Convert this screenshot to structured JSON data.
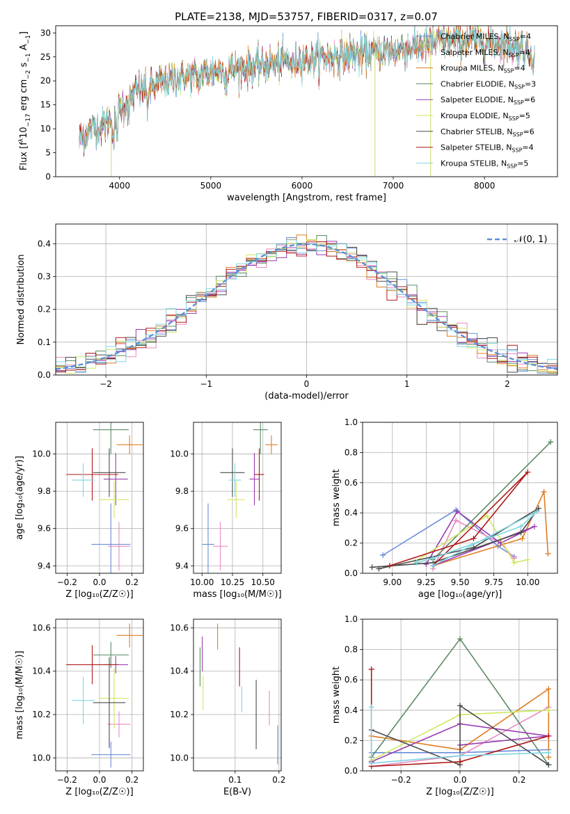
{
  "figure": {
    "title": "PLATE=2138, MJD=53757, FIBERID=0317, z=0.07"
  },
  "series": [
    {
      "label": "Chabrier MILES, N",
      "sub": "SSP",
      "n": "=4",
      "color": "#6a8ed8"
    },
    {
      "label": "Salpeter MILES, N",
      "sub": "SSP",
      "n": "=4",
      "color": "#e88ac2"
    },
    {
      "label": "Kroupa MILES, N",
      "sub": "SSP",
      "n": "=4",
      "color": "#e07b20"
    },
    {
      "label": "Chabrier ELODIE, N",
      "sub": "SSP",
      "n": "=3",
      "color": "#5a8a66"
    },
    {
      "label": "Salpeter ELODIE, N",
      "sub": "SSP",
      "n": "=6",
      "color": "#9b3bb0"
    },
    {
      "label": "Kroupa ELODIE, N",
      "sub": "SSP",
      "n": "=5",
      "color": "#cde860"
    },
    {
      "label": "Chabrier STELIB, N",
      "sub": "SSP",
      "n": "=6",
      "color": "#4a4a4a"
    },
    {
      "label": "Salpeter STELIB, N",
      "sub": "SSP",
      "n": "=4",
      "color": "#b01818"
    },
    {
      "label": "Kroupa STELIB, N",
      "sub": "SSP",
      "n": "=5",
      "color": "#7fd6e0"
    }
  ],
  "chart_data": [
    {
      "id": "spectrum",
      "type": "line",
      "xlabel": "wavelength [Angstrom, rest frame]",
      "ylabel": {
        "pre": "Flux [f",
        "sub": "λ",
        "mid": "10",
        "sup1": "−17",
        "post": " erg cm",
        "sup2": "−2",
        "post2": " s",
        "sup3": "−1",
        "post3": " A",
        "sup4": "−1",
        "end": "]"
      },
      "xlim": [
        3300,
        8800
      ],
      "ylim": [
        0,
        31.5
      ],
      "xticks": [
        4000,
        5000,
        6000,
        7000,
        8000
      ],
      "yticks": [
        0,
        5,
        10,
        15,
        20,
        25,
        30
      ],
      "continuum": [
        [
          3560,
          8
        ],
        [
          3700,
          10
        ],
        [
          3850,
          11
        ],
        [
          4000,
          14
        ],
        [
          4200,
          18
        ],
        [
          4400,
          19
        ],
        [
          4600,
          20.5
        ],
        [
          4800,
          21
        ],
        [
          5000,
          22
        ],
        [
          5200,
          22.5
        ],
        [
          5500,
          23
        ],
        [
          5800,
          24
        ],
        [
          6000,
          24.5
        ],
        [
          6300,
          25
        ],
        [
          6600,
          25.5
        ],
        [
          6900,
          26
        ],
        [
          7200,
          27
        ],
        [
          7500,
          28
        ],
        [
          7800,
          28.5
        ],
        [
          8100,
          28
        ],
        [
          8400,
          27
        ],
        [
          8550,
          25
        ]
      ],
      "features": [
        [
          3934,
          -6
        ],
        [
          3969,
          -5
        ],
        [
          4102,
          -3
        ],
        [
          4304,
          -4
        ],
        [
          4861,
          -2
        ],
        [
          5175,
          -3
        ],
        [
          5893,
          -2
        ],
        [
          6563,
          1
        ]
      ],
      "spikes": [
        {
          "x": 3910,
          "y": 0
        },
        {
          "x": 6800,
          "y": 0
        },
        {
          "x": 7410,
          "y": 0
        },
        {
          "x": 7350,
          "y": 31
        }
      ]
    },
    {
      "id": "residuals",
      "type": "step",
      "xlabel": "(data-model)/error",
      "ylabel": "Normed distribution",
      "xlim": [
        -2.5,
        2.5
      ],
      "ylim": [
        0,
        0.46
      ],
      "xticks": [
        -2,
        -1,
        0,
        1,
        2
      ],
      "yticks": [
        0.0,
        0.1,
        0.2,
        0.3,
        0.4
      ],
      "legend": {
        "label": "𝒩(0, 1)",
        "color": "#5b8fd9"
      },
      "bin_width": 0.1
    },
    {
      "id": "age_vs_Z",
      "type": "errorbar",
      "xlabel": "Z [log₁₀(Z/Z☉)]",
      "ylabel": "age  [log₁₀(age/yr)]",
      "xlim": [
        -0.27,
        0.27
      ],
      "ylim": [
        9.36,
        10.17
      ],
      "xticks": [
        -0.2,
        0.0,
        0.2
      ],
      "yticks": [
        9.4,
        9.6,
        9.8,
        10.0
      ],
      "points": [
        {
          "x": 0.07,
          "y": 9.515,
          "xerr": 0.12,
          "yerr": 0.22
        },
        {
          "x": 0.12,
          "y": 9.505,
          "xerr": 0.07,
          "yerr": 0.13
        },
        {
          "x": 0.185,
          "y": 10.05,
          "xerr": 0.08,
          "yerr": 0.05
        },
        {
          "x": 0.07,
          "y": 10.13,
          "xerr": 0.11,
          "yerr": 0.13
        },
        {
          "x": 0.1,
          "y": 9.865,
          "xerr": 0.075,
          "yerr": 0.14
        },
        {
          "x": 0.09,
          "y": 9.755,
          "xerr": 0.09,
          "yerr": 0.1
        },
        {
          "x": 0.06,
          "y": 9.9,
          "xerr": 0.1,
          "yerr": 0.13
        },
        {
          "x": -0.045,
          "y": 9.89,
          "xerr": 0.16,
          "yerr": 0.14
        },
        {
          "x": -0.1,
          "y": 9.86,
          "xerr": 0.07,
          "yerr": 0.09
        }
      ]
    },
    {
      "id": "age_vs_mass",
      "type": "errorbar",
      "xlabel": "mass [log₁₀(M/M☉)]",
      "ylabel": "",
      "xlim": [
        9.93,
        10.65
      ],
      "ylim": [
        9.36,
        10.17
      ],
      "xticks": [
        10.0,
        10.25,
        10.5
      ],
      "yticks": [
        9.4,
        9.6,
        9.8,
        10.0
      ],
      "points": [
        {
          "x": 10.05,
          "y": 9.515,
          "xerr": 0.05,
          "yerr": 0.22
        },
        {
          "x": 10.15,
          "y": 9.505,
          "xerr": 0.06,
          "yerr": 0.13
        },
        {
          "x": 10.57,
          "y": 10.05,
          "xerr": 0.05,
          "yerr": 0.05
        },
        {
          "x": 10.48,
          "y": 10.13,
          "xerr": 0.06,
          "yerr": 0.13
        },
        {
          "x": 10.43,
          "y": 9.865,
          "xerr": 0.04,
          "yerr": 0.14
        },
        {
          "x": 10.28,
          "y": 9.755,
          "xerr": 0.07,
          "yerr": 0.1
        },
        {
          "x": 10.25,
          "y": 9.9,
          "xerr": 0.1,
          "yerr": 0.13
        },
        {
          "x": 10.47,
          "y": 9.89,
          "xerr": 0.04,
          "yerr": 0.14
        },
        {
          "x": 10.27,
          "y": 9.86,
          "xerr": 0.05,
          "yerr": 0.09
        }
      ]
    },
    {
      "id": "weight_vs_age",
      "type": "line",
      "xlabel": "age  [log₁₀(age/yr)]",
      "ylabel": "mass weight",
      "xlim": [
        8.78,
        10.22
      ],
      "ylim": [
        0,
        1.0
      ],
      "xticks": [
        9.0,
        9.25,
        9.5,
        9.75,
        10.0
      ],
      "yticks": [
        0.0,
        0.2,
        0.4,
        0.6,
        0.8,
        1.0
      ],
      "lines": [
        [
          [
            8.93,
            0.12
          ],
          [
            9.47,
            0.42
          ],
          [
            9.78,
            0.18
          ],
          [
            9.9,
            0.11
          ]
        ],
        [
          [
            9.3,
            0.03
          ],
          [
            9.47,
            0.35
          ],
          [
            9.8,
            0.2
          ],
          [
            9.9,
            0.1
          ]
        ],
        [
          [
            9.3,
            0.05
          ],
          [
            9.96,
            0.23
          ],
          [
            10.12,
            0.54
          ],
          [
            10.15,
            0.13
          ]
        ],
        [
          [
            9.3,
            0.09
          ],
          [
            10.17,
            0.87
          ]
        ],
        [
          [
            9.25,
            0.06
          ],
          [
            9.48,
            0.41
          ],
          [
            9.8,
            0.2
          ],
          [
            10.05,
            0.31
          ],
          [
            9.3,
            0.05
          ]
        ],
        [
          [
            9.17,
            0.08
          ],
          [
            9.7,
            0.38
          ],
          [
            9.9,
            0.07
          ],
          [
            10.0,
            0.09
          ]
        ],
        [
          [
            8.85,
            0.04
          ],
          [
            9.3,
            0.07
          ],
          [
            9.95,
            0.27
          ],
          [
            10.08,
            0.43
          ],
          [
            9.6,
            0.17
          ],
          [
            8.9,
            0.03
          ]
        ],
        [
          [
            8.98,
            0.05
          ],
          [
            9.6,
            0.23
          ],
          [
            10.0,
            0.67
          ],
          [
            9.3,
            0.05
          ]
        ],
        [
          [
            9.18,
            0.07
          ],
          [
            9.3,
            0.1
          ],
          [
            9.95,
            0.31
          ],
          [
            10.07,
            0.41
          ],
          [
            9.3,
            0.05
          ]
        ]
      ]
    },
    {
      "id": "mass_vs_Z",
      "type": "errorbar",
      "xlabel": "Z [log₁₀(Z/Z☉)]",
      "ylabel": "mass [log₁₀(M/M☉)]",
      "xlim": [
        -0.27,
        0.27
      ],
      "ylim": [
        9.94,
        10.64
      ],
      "xticks": [
        -0.2,
        0.0,
        0.2
      ],
      "yticks": [
        10.0,
        10.2,
        10.4,
        10.6
      ],
      "points": [
        {
          "x": 0.07,
          "y": 10.015,
          "xerr": 0.12,
          "yerr": 0.06
        },
        {
          "x": 0.12,
          "y": 10.155,
          "xerr": 0.07,
          "yerr": 0.06
        },
        {
          "x": 0.185,
          "y": 10.565,
          "xerr": 0.08,
          "yerr": 0.055
        },
        {
          "x": 0.07,
          "y": 10.475,
          "xerr": 0.11,
          "yerr": 0.06
        },
        {
          "x": 0.1,
          "y": 10.43,
          "xerr": 0.075,
          "yerr": 0.04
        },
        {
          "x": 0.09,
          "y": 10.275,
          "xerr": 0.09,
          "yerr": 0.14
        },
        {
          "x": 0.06,
          "y": 10.255,
          "xerr": 0.1,
          "yerr": 0.21
        },
        {
          "x": -0.045,
          "y": 10.43,
          "xerr": 0.16,
          "yerr": 0.09
        },
        {
          "x": -0.1,
          "y": 10.265,
          "xerr": 0.07,
          "yerr": 0.11
        }
      ]
    },
    {
      "id": "mass_vs_EBV",
      "type": "errorbar",
      "xlabel": "E(B-V)",
      "ylabel": "",
      "xlim": [
        0.005,
        0.205
      ],
      "ylim": [
        9.94,
        10.64
      ],
      "xticks": [
        0.1,
        0.2
      ],
      "yticks": [
        10.0,
        10.2,
        10.4,
        10.6
      ],
      "points": [
        {
          "x": 0.197,
          "y": 10.06,
          "xerr": 0,
          "yerr": 0.09
        },
        {
          "x": 0.178,
          "y": 10.23,
          "xerr": 0,
          "yerr": 0.08
        },
        {
          "x": 0.06,
          "y": 10.56,
          "xerr": 0,
          "yerr": 0.06
        },
        {
          "x": 0.02,
          "y": 10.42,
          "xerr": 0,
          "yerr": 0.09
        },
        {
          "x": 0.025,
          "y": 10.48,
          "xerr": 0,
          "yerr": 0.08
        },
        {
          "x": 0.027,
          "y": 10.3,
          "xerr": 0,
          "yerr": 0.08
        },
        {
          "x": 0.148,
          "y": 10.2,
          "xerr": 0,
          "yerr": 0.16
        },
        {
          "x": 0.11,
          "y": 10.42,
          "xerr": 0,
          "yerr": 0.09
        },
        {
          "x": 0.115,
          "y": 10.27,
          "xerr": 0,
          "yerr": 0.06
        }
      ]
    },
    {
      "id": "weight_vs_Z",
      "type": "line",
      "xlabel": "Z [log₁₀(Z/Z☉)]",
      "ylabel": "mass weight",
      "xlim": [
        -0.33,
        0.33
      ],
      "ylim": [
        0,
        1.0
      ],
      "xticks": [
        -0.2,
        0.0,
        0.2
      ],
      "yticks": [
        0.0,
        0.2,
        0.4,
        0.6,
        0.8,
        1.0
      ],
      "lines": [
        [
          [
            -0.3,
            0.12
          ],
          [
            0.0,
            0.12
          ],
          [
            0.3,
            0.14
          ]
        ],
        [
          [
            -0.3,
            0.03
          ],
          [
            0.0,
            0.1
          ],
          [
            0.3,
            0.42
          ]
        ],
        [
          [
            -0.3,
            0.23
          ],
          [
            0.0,
            0.14
          ],
          [
            0.3,
            0.54
          ],
          [
            0.3,
            0.09
          ]
        ],
        [
          [
            -0.3,
            0.09
          ],
          [
            0.0,
            0.87
          ],
          [
            0.3,
            0.04
          ]
        ],
        [
          [
            -0.3,
            0.06
          ],
          [
            0.0,
            0.31
          ],
          [
            0.3,
            0.23
          ],
          [
            0.0,
            0.17
          ]
        ],
        [
          [
            -0.3,
            0.07
          ],
          [
            0.0,
            0.37
          ],
          [
            0.3,
            0.4
          ]
        ],
        [
          [
            -0.3,
            0.27
          ],
          [
            0.0,
            0.04
          ],
          [
            0.0,
            0.43
          ],
          [
            0.3,
            0.04
          ]
        ],
        [
          [
            -0.3,
            0.67
          ],
          [
            -0.3,
            0.03
          ],
          [
            0.0,
            0.06
          ],
          [
            0.3,
            0.23
          ]
        ],
        [
          [
            -0.3,
            0.42
          ],
          [
            -0.3,
            0.05
          ],
          [
            0.0,
            0.1
          ],
          [
            0.3,
            0.12
          ]
        ]
      ]
    }
  ]
}
